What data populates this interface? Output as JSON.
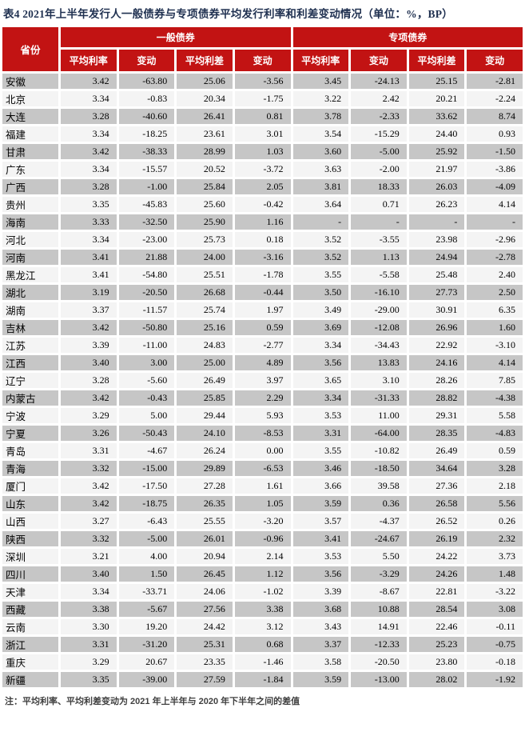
{
  "title": "表4  2021年上半年发行人一般债券与专项债券平均发行利率和利差变动情况（单位：%，BP）",
  "note": "注：平均利率、平均利差变动为 2021 年上半年与 2020 年下半年之间的差值",
  "colors": {
    "header_bg": "#C21313",
    "row_dark": "#C6C6C6",
    "row_light": "#F4F4F4",
    "title_color": "#1F3050"
  },
  "table": {
    "province_header": "省份",
    "groups": [
      {
        "label": "一般债券",
        "sub": [
          "平均利率",
          "变动",
          "平均利差",
          "变动"
        ]
      },
      {
        "label": "专项债券",
        "sub": [
          "平均利率",
          "变动",
          "平均利差",
          "变动"
        ]
      }
    ],
    "rows": [
      {
        "province": "安徽",
        "values": [
          "3.42",
          "-63.80",
          "25.06",
          "-3.56",
          "3.45",
          "-24.13",
          "25.15",
          "-2.81"
        ]
      },
      {
        "province": "北京",
        "values": [
          "3.34",
          "-0.83",
          "20.34",
          "-1.75",
          "3.22",
          "2.42",
          "20.21",
          "-2.24"
        ]
      },
      {
        "province": "大连",
        "values": [
          "3.28",
          "-40.60",
          "26.41",
          "0.81",
          "3.78",
          "-2.33",
          "33.62",
          "8.74"
        ]
      },
      {
        "province": "福建",
        "values": [
          "3.34",
          "-18.25",
          "23.61",
          "3.01",
          "3.54",
          "-15.29",
          "24.40",
          "0.93"
        ]
      },
      {
        "province": "甘肃",
        "values": [
          "3.42",
          "-38.33",
          "28.99",
          "1.03",
          "3.60",
          "-5.00",
          "25.92",
          "-1.50"
        ]
      },
      {
        "province": "广东",
        "values": [
          "3.34",
          "-15.57",
          "20.52",
          "-3.72",
          "3.63",
          "-2.00",
          "21.97",
          "-3.86"
        ]
      },
      {
        "province": "广西",
        "values": [
          "3.28",
          "-1.00",
          "25.84",
          "2.05",
          "3.81",
          "18.33",
          "26.03",
          "-4.09"
        ]
      },
      {
        "province": "贵州",
        "values": [
          "3.35",
          "-45.83",
          "25.60",
          "-0.42",
          "3.64",
          "0.71",
          "26.23",
          "4.14"
        ]
      },
      {
        "province": "海南",
        "values": [
          "3.33",
          "-32.50",
          "25.90",
          "1.16",
          "-",
          "-",
          "-",
          "-"
        ]
      },
      {
        "province": "河北",
        "values": [
          "3.34",
          "-23.00",
          "25.73",
          "0.18",
          "3.52",
          "-3.55",
          "23.98",
          "-2.96"
        ]
      },
      {
        "province": "河南",
        "values": [
          "3.41",
          "21.88",
          "24.00",
          "-3.16",
          "3.52",
          "1.13",
          "24.94",
          "-2.78"
        ]
      },
      {
        "province": "黑龙江",
        "values": [
          "3.41",
          "-54.80",
          "25.51",
          "-1.78",
          "3.55",
          "-5.58",
          "25.48",
          "2.40"
        ]
      },
      {
        "province": "湖北",
        "values": [
          "3.19",
          "-20.50",
          "26.68",
          "-0.44",
          "3.50",
          "-16.10",
          "27.73",
          "2.50"
        ]
      },
      {
        "province": "湖南",
        "values": [
          "3.37",
          "-11.57",
          "25.74",
          "1.97",
          "3.49",
          "-29.00",
          "30.91",
          "6.35"
        ]
      },
      {
        "province": "吉林",
        "values": [
          "3.42",
          "-50.80",
          "25.16",
          "0.59",
          "3.69",
          "-12.08",
          "26.96",
          "1.60"
        ]
      },
      {
        "province": "江苏",
        "values": [
          "3.39",
          "-11.00",
          "24.83",
          "-2.77",
          "3.34",
          "-34.43",
          "22.92",
          "-3.10"
        ]
      },
      {
        "province": "江西",
        "values": [
          "3.40",
          "3.00",
          "25.00",
          "4.89",
          "3.56",
          "13.83",
          "24.16",
          "4.14"
        ]
      },
      {
        "province": "辽宁",
        "values": [
          "3.28",
          "-5.60",
          "26.49",
          "3.97",
          "3.65",
          "3.10",
          "28.26",
          "7.85"
        ]
      },
      {
        "province": "内蒙古",
        "values": [
          "3.42",
          "-0.43",
          "25.85",
          "2.29",
          "3.34",
          "-31.33",
          "28.82",
          "-4.38"
        ]
      },
      {
        "province": "宁波",
        "values": [
          "3.29",
          "5.00",
          "29.44",
          "5.93",
          "3.53",
          "11.00",
          "29.31",
          "5.58"
        ]
      },
      {
        "province": "宁夏",
        "values": [
          "3.26",
          "-50.43",
          "24.10",
          "-8.53",
          "3.31",
          "-64.00",
          "28.35",
          "-4.83"
        ]
      },
      {
        "province": "青岛",
        "values": [
          "3.31",
          "-4.67",
          "26.24",
          "0.00",
          "3.55",
          "-10.82",
          "26.49",
          "0.59"
        ]
      },
      {
        "province": "青海",
        "values": [
          "3.32",
          "-15.00",
          "29.89",
          "-6.53",
          "3.46",
          "-18.50",
          "34.64",
          "3.28"
        ]
      },
      {
        "province": "厦门",
        "values": [
          "3.42",
          "-17.50",
          "27.28",
          "1.61",
          "3.66",
          "39.58",
          "27.36",
          "2.18"
        ]
      },
      {
        "province": "山东",
        "values": [
          "3.42",
          "-18.75",
          "26.35",
          "1.05",
          "3.59",
          "0.36",
          "26.58",
          "5.56"
        ]
      },
      {
        "province": "山西",
        "values": [
          "3.27",
          "-6.43",
          "25.55",
          "-3.20",
          "3.57",
          "-4.37",
          "26.52",
          "0.26"
        ]
      },
      {
        "province": "陕西",
        "values": [
          "3.32",
          "-5.00",
          "26.01",
          "-0.96",
          "3.41",
          "-24.67",
          "26.19",
          "2.32"
        ]
      },
      {
        "province": "深圳",
        "values": [
          "3.21",
          "4.00",
          "20.94",
          "2.14",
          "3.53",
          "5.50",
          "24.22",
          "3.73"
        ]
      },
      {
        "province": "四川",
        "values": [
          "3.40",
          "1.50",
          "26.45",
          "1.12",
          "3.56",
          "-3.29",
          "24.26",
          "1.48"
        ]
      },
      {
        "province": "天津",
        "values": [
          "3.34",
          "-33.71",
          "24.06",
          "-1.02",
          "3.39",
          "-8.67",
          "22.81",
          "-3.22"
        ]
      },
      {
        "province": "西藏",
        "values": [
          "3.38",
          "-5.67",
          "27.56",
          "3.38",
          "3.68",
          "10.88",
          "28.54",
          "3.08"
        ]
      },
      {
        "province": "云南",
        "values": [
          "3.30",
          "19.20",
          "24.42",
          "3.12",
          "3.43",
          "14.91",
          "22.46",
          "-0.11"
        ]
      },
      {
        "province": "浙江",
        "values": [
          "3.31",
          "-31.20",
          "25.31",
          "0.68",
          "3.37",
          "-12.33",
          "25.23",
          "-0.75"
        ]
      },
      {
        "province": "重庆",
        "values": [
          "3.29",
          "20.67",
          "23.35",
          "-1.46",
          "3.58",
          "-20.50",
          "23.80",
          "-0.18"
        ]
      },
      {
        "province": "新疆",
        "values": [
          "3.35",
          "-39.00",
          "27.59",
          "-1.84",
          "3.59",
          "-13.00",
          "28.02",
          "-1.92"
        ]
      }
    ]
  }
}
